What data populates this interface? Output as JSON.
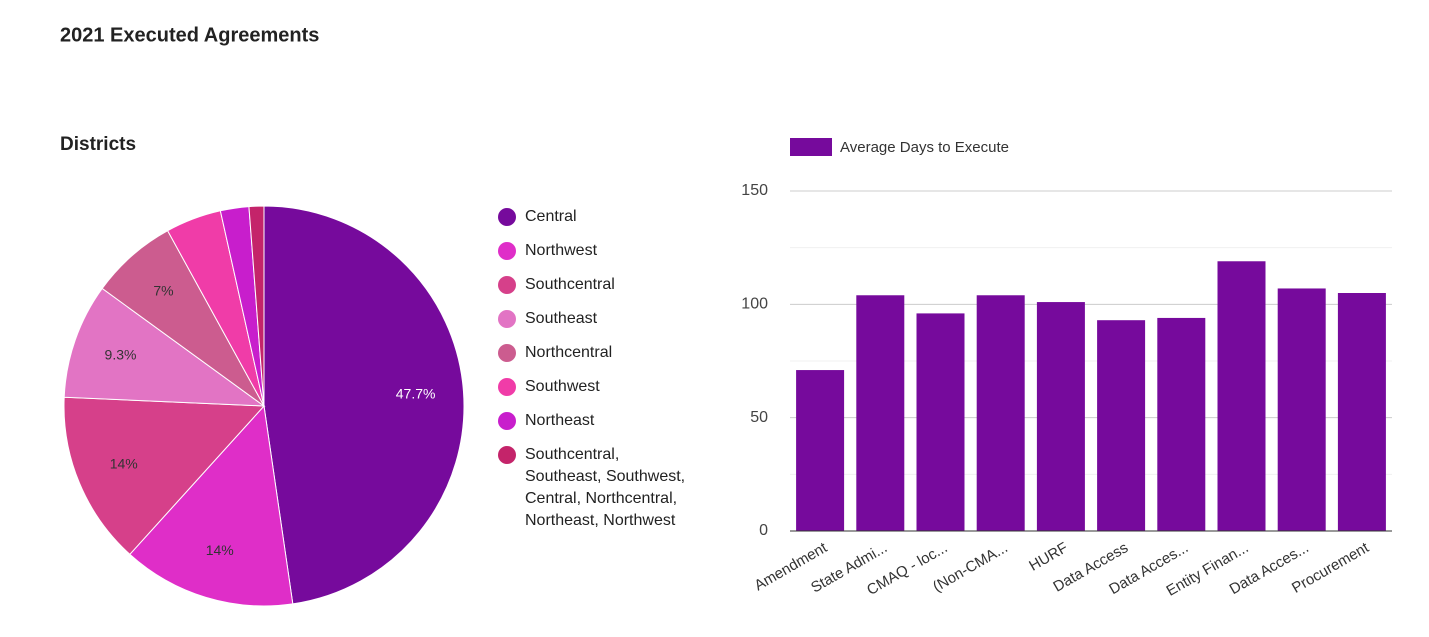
{
  "title": "2021 Executed Agreements",
  "chart_data": [
    {
      "type": "pie",
      "title": "Districts",
      "categories": [
        "Central",
        "Northwest",
        "Southcentral",
        "Southeast",
        "Northcentral",
        "Southwest",
        "Northeast",
        "Southcentral, Southeast, Southwest, Central, Northcentral, Northeast, Northwest"
      ],
      "values": [
        47.7,
        14,
        14,
        9.3,
        7,
        4.5,
        2.3,
        1.2
      ],
      "value_labels": [
        "47.7%",
        "14%",
        "14%",
        "9.3%",
        "7%",
        null,
        null,
        null
      ],
      "colors": [
        "#760a9c",
        "#df2ec8",
        "#d6408a",
        "#e274c4",
        "#cc5c8f",
        "#f03ca8",
        "#c81ecc",
        "#c4246a"
      ]
    },
    {
      "type": "bar",
      "categories": [
        "Amendment",
        "State Admi...",
        "CMAQ - loc...",
        "(Non-CMA...",
        "HURF",
        "Data Access",
        "Data Acces...",
        "Entity Finan...",
        "Data Acces...",
        "Procurement"
      ],
      "series": [
        {
          "name": "Average Days to Execute",
          "color": "#760a9c",
          "values": [
            71,
            104,
            96,
            104,
            101,
            93,
            94,
            119,
            107,
            105
          ]
        }
      ],
      "ylim": [
        0,
        150
      ],
      "yticks": [
        0,
        50,
        100,
        150
      ],
      "minor_yticks": [
        25,
        75,
        125
      ],
      "grid": true
    }
  ]
}
